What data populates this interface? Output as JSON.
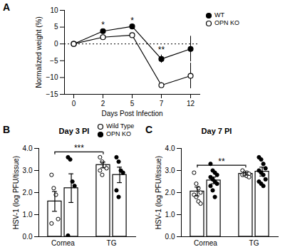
{
  "chart_data": [
    {
      "type": "line",
      "panel": "A",
      "x_label": "Days Post Infection",
      "y_label": "Normalized weight (%)",
      "categories": [
        0,
        2,
        5,
        7,
        12
      ],
      "ylim": [
        -15,
        10
      ],
      "yticks": [
        -15,
        -10,
        -5,
        0,
        5,
        10
      ],
      "reference_line": 0,
      "legend": "top-right",
      "series": [
        {
          "name": "WT",
          "color": "#000000",
          "marker": "filled circle",
          "values": [
            0,
            3.8,
            5.2,
            -4.5,
            -1.5
          ],
          "errors": [
            0,
            0.3,
            0.3,
            1.2,
            3.8
          ]
        },
        {
          "name": "OPN KO",
          "color": "#000000",
          "marker": "open circle",
          "values": [
            0,
            2.0,
            2.6,
            -12.3,
            -9.5
          ],
          "errors": [
            0,
            0.3,
            0.3,
            0.8,
            3.8
          ]
        }
      ],
      "annotations": [
        {
          "x": 2,
          "text": "*"
        },
        {
          "x": 5,
          "text": "*"
        },
        {
          "x": 7,
          "text": "**"
        }
      ]
    },
    {
      "type": "bar",
      "panel": "B",
      "title": "Day 3 PI",
      "y_label": "HSV-1 (log PFU/tissue)",
      "categories": [
        "Cornea",
        "TG"
      ],
      "ylim": [
        0,
        4
      ],
      "yticks": [
        0,
        1,
        2,
        3,
        4
      ],
      "legend": "top-right",
      "series": [
        {
          "name": "Wild Type",
          "color": "#000000",
          "marker": "open circle",
          "values": [
            1.6,
            3.25
          ],
          "errors": [
            0.45,
            0.13
          ],
          "points": [
            [
              2.8,
              2.2,
              1.9,
              0.8,
              0.6
            ],
            [
              3.6,
              3.4,
              3.2,
              3.1,
              3.0,
              2.8
            ]
          ]
        },
        {
          "name": "OPN KO",
          "color": "#000000",
          "marker": "filled circle",
          "values": [
            2.2,
            2.8
          ],
          "errors": [
            0.65,
            0.35
          ],
          "points": [
            [
              3.6,
              3.5,
              2.5,
              2.3,
              0.05
            ],
            [
              3.6,
              3.4,
              3.0,
              2.9,
              2.1,
              1.8
            ]
          ]
        }
      ],
      "annotations": [
        {
          "text": "***",
          "between": [
            "Cornea",
            "TG"
          ],
          "series": 0
        }
      ]
    },
    {
      "type": "bar",
      "panel": "C",
      "title": "Day 7 PI",
      "y_label": "HSV-1 (log PFU/tissue)",
      "categories": [
        "Cornea",
        "TG"
      ],
      "ylim": [
        0,
        4
      ],
      "yticks": [
        0,
        1,
        2,
        3,
        4
      ],
      "series": [
        {
          "color": "#000000",
          "marker": "open circle",
          "values": [
            2.05,
            2.85
          ],
          "errors": [
            0.2,
            0.06
          ],
          "points": [
            [
              2.9,
              2.4,
              2.2,
              2.0,
              1.9,
              1.8,
              1.6,
              1.5
            ],
            [
              3.0,
              2.9,
              2.9,
              2.85,
              2.8,
              2.8,
              2.75,
              2.7
            ]
          ]
        },
        {
          "color": "#000000",
          "marker": "filled circle",
          "values": [
            2.55,
            2.95
          ],
          "errors": [
            0.15,
            0.2
          ],
          "points": [
            [
              3.3,
              3.0,
              2.9,
              2.8,
              2.7,
              2.6,
              2.5,
              2.4,
              2.3,
              2.1,
              1.8
            ],
            [
              3.6,
              3.5,
              3.3,
              3.1,
              3.0,
              2.9,
              2.8,
              2.6,
              2.5,
              2.4,
              2.3
            ]
          ]
        }
      ],
      "annotations": [
        {
          "text": "**",
          "between": [
            "Cornea",
            "TG"
          ],
          "series": 0
        }
      ]
    }
  ]
}
